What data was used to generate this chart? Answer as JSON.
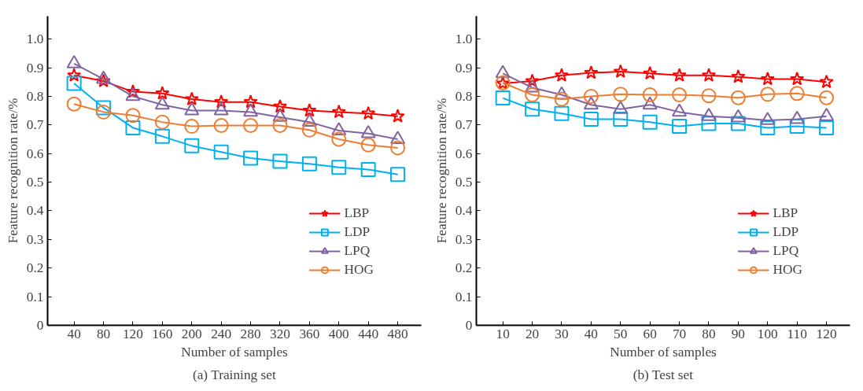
{
  "chart_data": [
    {
      "type": "line",
      "xlabel": "Number of samples",
      "ylabel": "Feature recognition rate/%",
      "annotations": [
        "(a) Training set"
      ],
      "categories": [
        "40",
        "80",
        "120",
        "160",
        "200",
        "240",
        "280",
        "320",
        "360",
        "400",
        "440",
        "480"
      ],
      "ylim": [
        0,
        1.08
      ],
      "yticks": [
        0,
        0.1,
        0.2,
        0.3,
        0.4,
        0.5,
        0.6,
        0.7,
        0.8,
        0.9,
        {
          "value": 1.0,
          "label": "1.0"
        }
      ],
      "grid": false,
      "legend": "bottom right",
      "line_style": "solid",
      "series": [
        {
          "name": "LBP",
          "color": "#ff0000",
          "marker": "star",
          "values": [
            0.873,
            0.853,
            0.816,
            0.81,
            0.79,
            0.78,
            0.78,
            0.764,
            0.75,
            0.745,
            0.74,
            0.73
          ]
        },
        {
          "name": "LDP",
          "color": "#00b0f0",
          "marker": "square",
          "values": [
            0.845,
            0.76,
            0.69,
            0.66,
            0.627,
            0.605,
            0.584,
            0.573,
            0.564,
            0.552,
            0.544,
            0.527
          ]
        },
        {
          "name": "LPQ",
          "color": "#8064a2",
          "marker": "triangle",
          "values": [
            0.914,
            0.86,
            0.8,
            0.77,
            0.75,
            0.75,
            0.745,
            0.727,
            0.71,
            0.68,
            0.67,
            0.65
          ]
        },
        {
          "name": "HOG",
          "color": "#ed7d31",
          "marker": "circle",
          "values": [
            0.773,
            0.745,
            0.733,
            0.71,
            0.695,
            0.698,
            0.698,
            0.698,
            0.682,
            0.65,
            0.63,
            0.62
          ]
        }
      ]
    },
    {
      "type": "line",
      "xlabel": "Number of samples",
      "ylabel": "Feature recognition rate/%",
      "annotations": [
        "(b) Test set"
      ],
      "categories": [
        "10",
        "20",
        "30",
        "40",
        "50",
        "60",
        "70",
        "80",
        "90",
        "100",
        "110",
        "120"
      ],
      "ylim": [
        0,
        1.08
      ],
      "yticks": [
        0,
        0.1,
        0.2,
        0.3,
        0.4,
        0.5,
        0.6,
        0.7,
        0.8,
        0.9,
        {
          "value": 1.0,
          "label": "1.0"
        }
      ],
      "grid": false,
      "legend": "bottom right",
      "line_style": "solid",
      "series": [
        {
          "name": "LBP",
          "color": "#ff0000",
          "marker": "star",
          "values": [
            0.845,
            0.853,
            0.873,
            0.882,
            0.886,
            0.88,
            0.873,
            0.873,
            0.868,
            0.86,
            0.86,
            0.85
          ]
        },
        {
          "name": "LDP",
          "color": "#00b0f0",
          "marker": "square",
          "values": [
            0.794,
            0.755,
            0.74,
            0.72,
            0.72,
            0.71,
            0.695,
            0.705,
            0.705,
            0.69,
            0.695,
            0.69
          ]
        },
        {
          "name": "LPQ",
          "color": "#8064a2",
          "marker": "triangle",
          "values": [
            0.88,
            0.83,
            0.805,
            0.77,
            0.755,
            0.77,
            0.745,
            0.73,
            0.725,
            0.716,
            0.72,
            0.73
          ]
        },
        {
          "name": "HOG",
          "color": "#ed7d31",
          "marker": "circle",
          "values": [
            0.847,
            0.805,
            0.79,
            0.8,
            0.807,
            0.805,
            0.805,
            0.802,
            0.795,
            0.807,
            0.81,
            0.795
          ]
        }
      ]
    }
  ]
}
